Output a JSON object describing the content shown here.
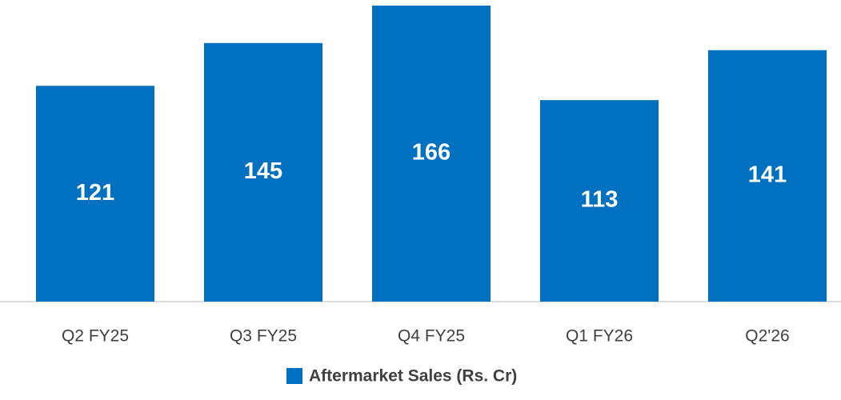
{
  "chart_data": {
    "type": "bar",
    "categories": [
      "Q2 FY25",
      "Q3 FY25",
      "Q4 FY25",
      "Q1 FY26",
      "Q2'26"
    ],
    "series": [
      {
        "name": "Aftermarket Sales (Rs. Cr)",
        "color": "#0070c0",
        "values": [
          121,
          145,
          166,
          113,
          141
        ]
      }
    ]
  }
}
